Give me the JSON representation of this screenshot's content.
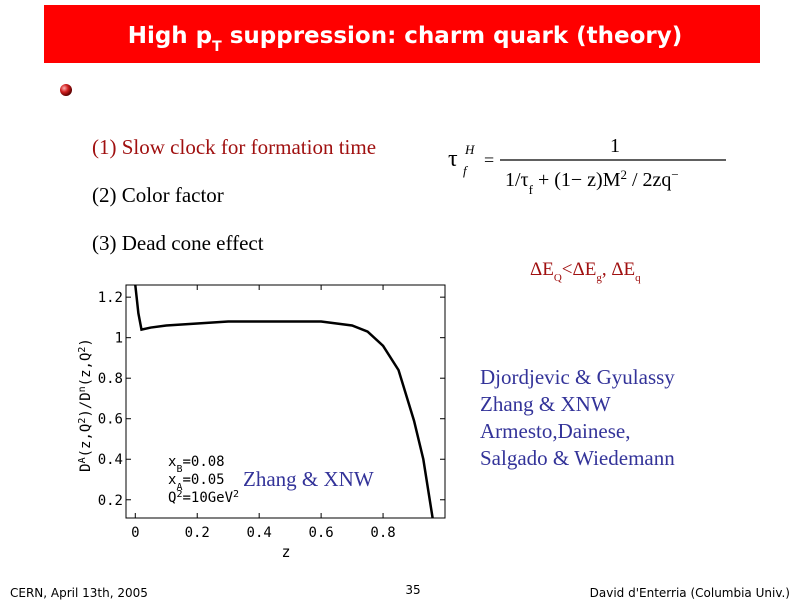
{
  "header": {
    "title_parts": [
      "High p",
      "T",
      " suppression: charm quark (theory)"
    ]
  },
  "bullets": [
    "(1) Slow clock for formation time",
    "(2) Color factor",
    "(3) Dead cone effect"
  ],
  "formula": {
    "lhs": "τ",
    "lhs_sup": "H",
    "lhs_sub": "f",
    "equals": "=",
    "numerator": "1",
    "denominator_parts": [
      "1/τ",
      "f",
      " + (1− z)M",
      "2",
      " / 2zq",
      "−"
    ]
  },
  "energy_loss_parts": [
    "ΔE",
    "Q",
    "<ΔE",
    "g",
    ", ΔE",
    "q"
  ],
  "references": [
    "Djordjevic & Gyulassy",
    "Zhang & XNW",
    "Armesto,Dainese,",
    "Salgado & Wiedemann"
  ],
  "chart_data": {
    "type": "line",
    "x_label": "z",
    "y_label_parts": [
      "D",
      "A",
      "(z,Q",
      "2",
      ")/D",
      "n",
      "(z,Q",
      "2",
      ")"
    ],
    "annotations": [
      [
        "x",
        "B",
        "=0.08"
      ],
      [
        "x",
        "A",
        "=0.05"
      ],
      [
        "Q",
        "2",
        "=10GeV",
        "2"
      ]
    ],
    "note": "Zhang & XNW",
    "x": [
      0,
      0.01,
      0.02,
      0.05,
      0.1,
      0.2,
      0.3,
      0.4,
      0.5,
      0.6,
      0.7,
      0.75,
      0.8,
      0.85,
      0.9,
      0.93,
      0.96
    ],
    "series": [
      {
        "color": "#000000",
        "values": [
          1.26,
          1.12,
          1.04,
          1.05,
          1.06,
          1.07,
          1.08,
          1.08,
          1.08,
          1.08,
          1.06,
          1.03,
          0.96,
          0.84,
          0.59,
          0.4,
          0.11
        ]
      }
    ],
    "xlim": [
      -0.03,
      1.0
    ],
    "ylim": [
      0.11,
      1.26
    ],
    "xticks": [
      0,
      0.2,
      0.4,
      0.6,
      0.8
    ],
    "yticks": [
      0.2,
      0.4,
      0.6,
      0.8,
      1,
      1.2
    ]
  },
  "footer": {
    "left": "CERN, April 13th, 2005",
    "center": "35",
    "right": "David d'Enterria (Columbia Univ.)"
  }
}
